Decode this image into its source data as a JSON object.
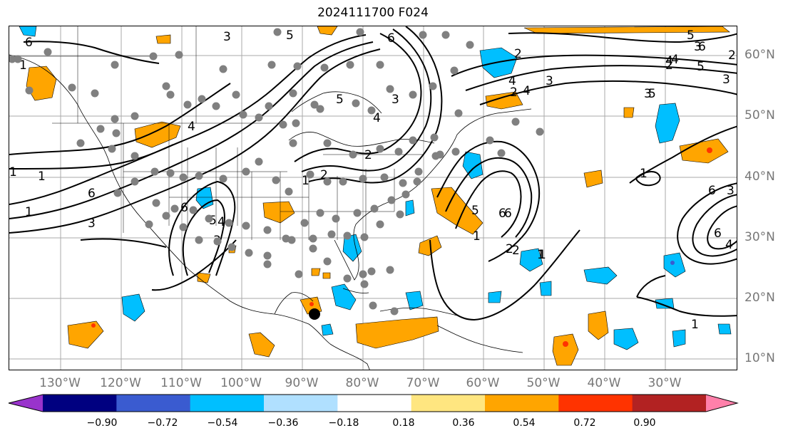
{
  "title": "2024111700 F024",
  "longitude_labels": [
    "130°W",
    "120°W",
    "110°W",
    "100°W",
    "90°W",
    "80°W",
    "70°W",
    "60°W",
    "50°W",
    "40°W",
    "30°W"
  ],
  "latitude_labels": [
    "60°N",
    "50°N",
    "40°N",
    "30°N",
    "20°N",
    "10°N"
  ],
  "contour_labels": [
    "6",
    "5",
    "4",
    "3",
    "2",
    "1",
    "2",
    "3",
    "4",
    "5",
    "6",
    "1",
    "6",
    "5",
    "4",
    "3",
    "2",
    "1",
    "6",
    "5",
    "4",
    "3",
    "2",
    "1",
    "4",
    "3",
    "2",
    "1",
    "5",
    "6",
    "2",
    "1",
    "3",
    "4",
    "1",
    "3",
    "4",
    "6",
    "6",
    "5",
    "6",
    "1",
    "1",
    "2",
    "3",
    "4",
    "5",
    "6",
    "2",
    "1",
    "3"
  ],
  "colorbar": {
    "ticks": [
      "−0.90",
      "−0.72",
      "−0.54",
      "−0.36",
      "−0.18",
      "0.18",
      "0.36",
      "0.54",
      "0.72",
      "0.90"
    ],
    "colors": [
      "#9933cc",
      "#000080",
      "#3a5bd0",
      "#00bfff",
      "#b0e0ff",
      "#ffffff",
      "#ffe680",
      "#ffa500",
      "#ff3300",
      "#b22222",
      "#ff80aa"
    ]
  },
  "fill_colors": {
    "light_blue": "#00bfff",
    "mid_blue": "#3a5bd0",
    "orange": "#ffa500",
    "red_orange": "#ff3300",
    "pale_yellow": "#ffe680"
  },
  "markers": {
    "station_color": "#808080",
    "highlight_color": "#000000"
  }
}
